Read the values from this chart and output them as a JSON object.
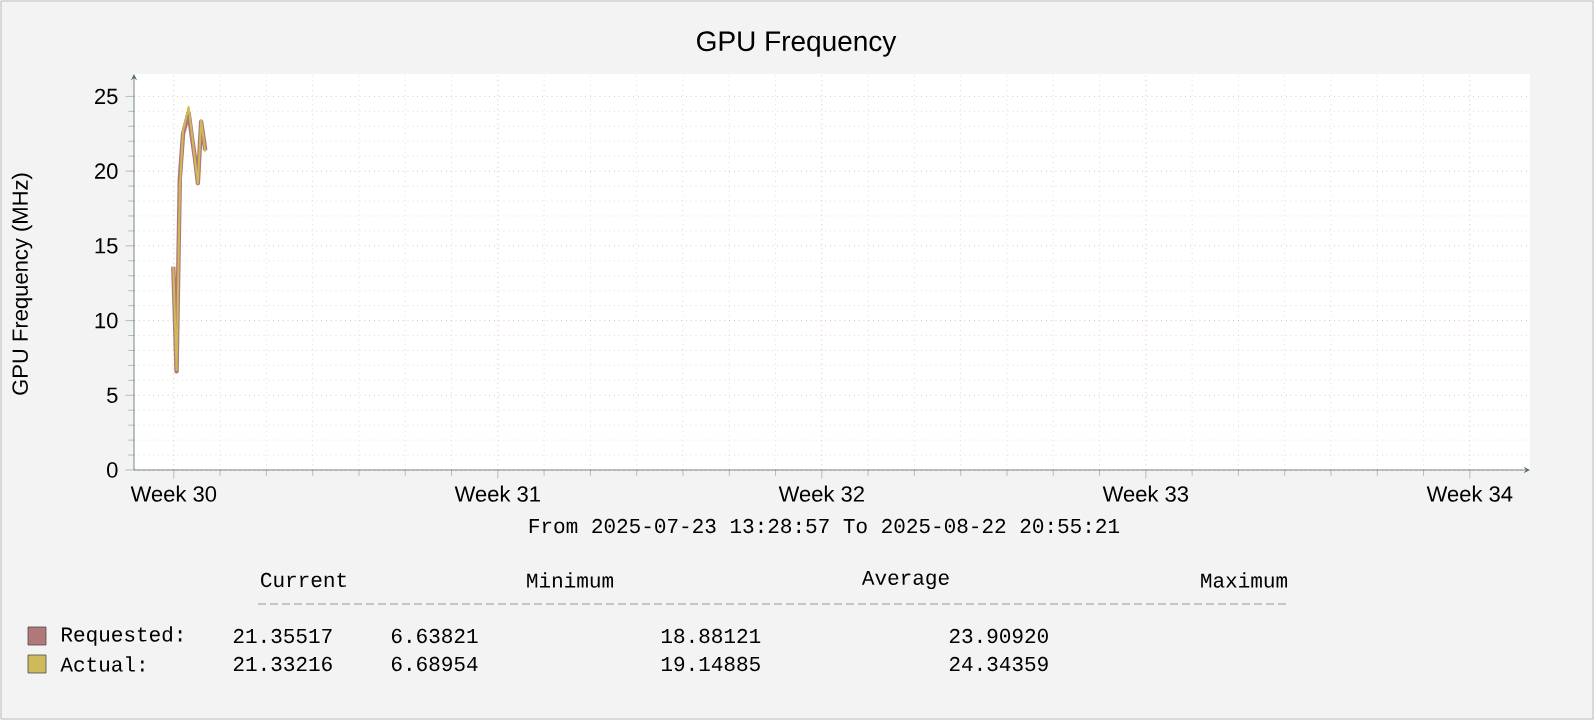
{
  "chart_data": {
    "type": "line",
    "title": "GPU Frequency",
    "ylabel": "GPU Frequency (MHz)",
    "xlim": [
      "2025-07-20T03:22",
      "2025-08-19T07:12"
    ],
    "ylim": [
      0,
      26.5
    ],
    "xticks": [
      {
        "value": "2025-07-21",
        "label": "Week 30"
      },
      {
        "value": "2025-07-28",
        "label": "Week 31"
      },
      {
        "value": "2025-08-04",
        "label": "Week 32"
      },
      {
        "value": "2025-08-11",
        "label": "Week 33"
      },
      {
        "value": "2025-08-18",
        "label": "Week 34"
      }
    ],
    "yticks": [
      0,
      5,
      10,
      15,
      20,
      25
    ],
    "grid": true,
    "legend": "bottom",
    "x": [
      "2025-07-20T23:45",
      "2025-07-21T01:26",
      "2025-07-21T03:07",
      "2025-07-21T04:48",
      "2025-07-21T07:41",
      "2025-07-21T09:22",
      "2025-07-21T11:02",
      "2025-07-21T12:29",
      "2025-07-21T14:10",
      "2025-07-21T16:19"
    ],
    "series": [
      {
        "name": "Requested:",
        "color": "#b07878",
        "values": [
          13.6,
          6.6,
          19.5,
          22.5,
          23.9,
          22.3,
          20.8,
          19.2,
          23.3,
          21.4
        ]
      },
      {
        "name": "Actual:",
        "color": "#cdbb5a",
        "values": [
          13.6,
          6.7,
          18.9,
          22.7,
          24.3,
          22.5,
          20.7,
          19.2,
          23.4,
          21.3
        ]
      }
    ],
    "annotations": [
      "From 2025-07-23 13:28:57 To 2025-08-22 20:55:21",
      "Current",
      "Minimum",
      "Average",
      "Maximum",
      "21.35517",
      "6.63821",
      "18.88121",
      "23.90920",
      "21.33216",
      "6.68954",
      "19.14885",
      "24.34359"
    ]
  }
}
